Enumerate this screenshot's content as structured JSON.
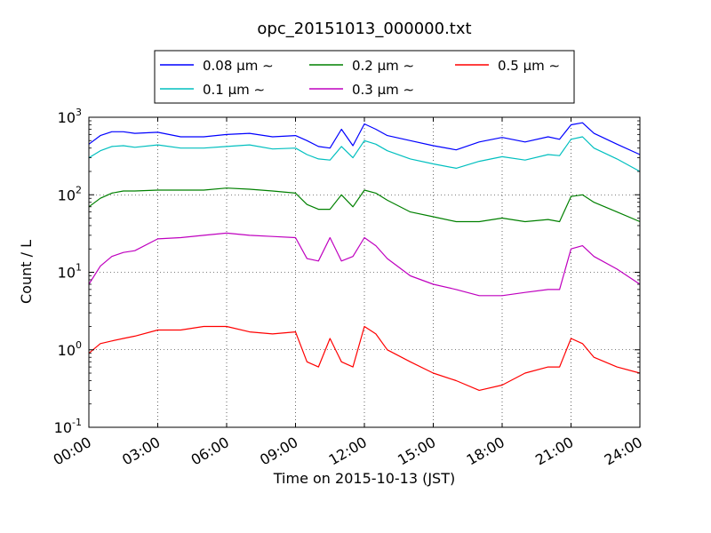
{
  "chart_data": {
    "type": "line",
    "title": "opc_20151013_000000.txt",
    "xlabel": "Time on 2015-10-13 (JST)",
    "ylabel": "Count / L",
    "xlim": [
      "00:00",
      "24:00"
    ],
    "ylim": [
      0.1,
      1000
    ],
    "yscale": "log",
    "grid": true,
    "legend_position": "top, above plot",
    "x_ticks": [
      "00:00",
      "03:00",
      "06:00",
      "09:00",
      "12:00",
      "15:00",
      "18:00",
      "21:00",
      "24:00"
    ],
    "y_ticks": [
      {
        "base": "10",
        "exp": "-1"
      },
      {
        "base": "10",
        "exp": "0"
      },
      {
        "base": "10",
        "exp": "1"
      },
      {
        "base": "10",
        "exp": "2"
      },
      {
        "base": "10",
        "exp": "3"
      }
    ],
    "x_hours": [
      0,
      0.5,
      1,
      1.5,
      2,
      3,
      4,
      5,
      6,
      7,
      8,
      9,
      9.5,
      10,
      10.5,
      11,
      11.5,
      12,
      12.5,
      13,
      14,
      15,
      16,
      17,
      18,
      19,
      20,
      20.5,
      21,
      21.5,
      22,
      23,
      24
    ],
    "series": [
      {
        "name": "0.08 μm ∼",
        "color": "#0000ff",
        "values": [
          450,
          580,
          650,
          650,
          620,
          640,
          560,
          560,
          600,
          620,
          560,
          580,
          500,
          420,
          400,
          700,
          430,
          820,
          700,
          580,
          500,
          430,
          380,
          480,
          550,
          480,
          560,
          520,
          800,
          850,
          620,
          450,
          330
        ]
      },
      {
        "name": "0.1 μm ∼",
        "color": "#00bfbf",
        "values": [
          300,
          370,
          420,
          430,
          410,
          440,
          400,
          400,
          420,
          440,
          390,
          400,
          330,
          290,
          280,
          420,
          300,
          500,
          450,
          370,
          290,
          250,
          220,
          270,
          310,
          280,
          330,
          320,
          520,
          560,
          400,
          290,
          200
        ]
      },
      {
        "name": "0.2 μm ∼",
        "color": "#008000",
        "values": [
          70,
          90,
          105,
          112,
          112,
          115,
          115,
          115,
          122,
          118,
          112,
          105,
          75,
          65,
          65,
          100,
          70,
          115,
          105,
          85,
          60,
          52,
          45,
          45,
          50,
          45,
          48,
          45,
          95,
          100,
          80,
          60,
          45
        ]
      },
      {
        "name": "0.3 μm ∼",
        "color": "#bf00bf",
        "values": [
          7,
          12,
          16,
          18,
          19,
          27,
          28,
          30,
          32,
          30,
          29,
          28,
          15,
          14,
          28,
          14,
          16,
          28,
          22,
          15,
          9,
          7,
          6,
          5,
          5,
          5.5,
          6,
          6,
          20,
          22,
          16,
          11,
          7
        ]
      },
      {
        "name": "0.5 μm ∼",
        "color": "#ff0000",
        "values": [
          0.9,
          1.2,
          1.3,
          1.4,
          1.5,
          1.8,
          1.8,
          2.0,
          2.0,
          1.7,
          1.6,
          1.7,
          0.7,
          0.6,
          1.4,
          0.7,
          0.6,
          2.0,
          1.6,
          1.0,
          0.7,
          0.5,
          0.4,
          0.3,
          0.35,
          0.5,
          0.6,
          0.6,
          1.4,
          1.2,
          0.8,
          0.6,
          0.5
        ]
      }
    ]
  }
}
